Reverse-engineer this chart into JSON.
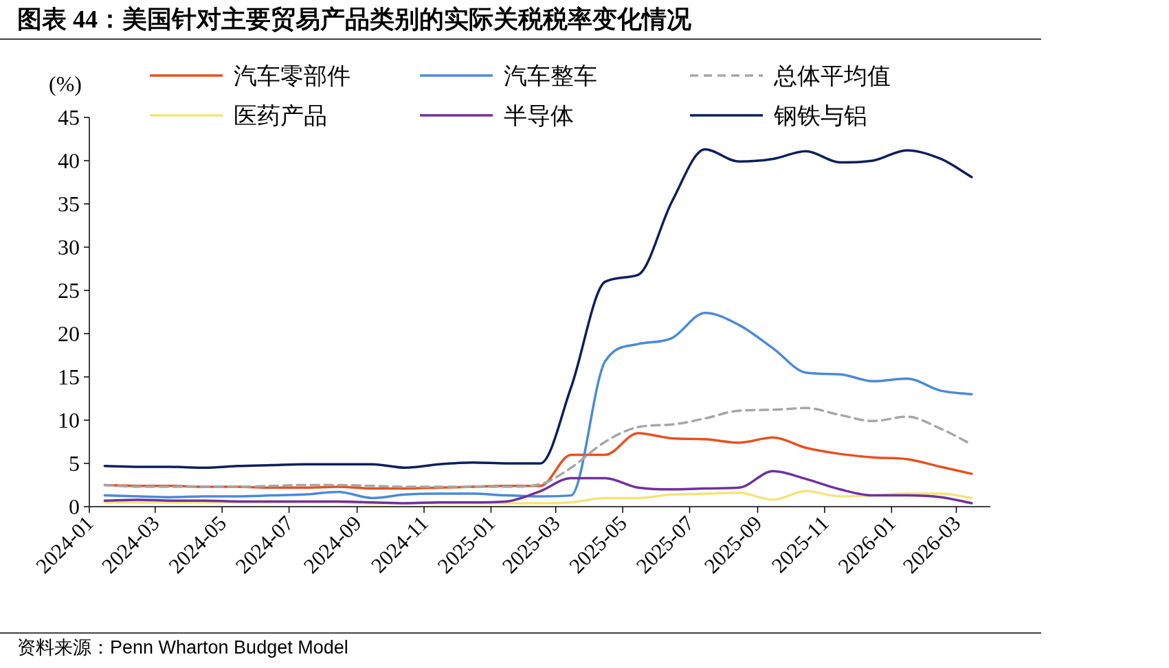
{
  "chart_data": {
    "type": "line",
    "title": "图表 44：美国针对主要贸易产品类别的实际关税税率变化情况",
    "ylabel": "(%)",
    "annotations": [
      "资料来源：Penn Wharton Budget Model"
    ],
    "legend": "top",
    "x": [
      "2024-01-15",
      "2024-02-15",
      "2024-03-15",
      "2024-04-15",
      "2024-05-15",
      "2024-06-15",
      "2024-07-15",
      "2024-08-15",
      "2024-09-15",
      "2024-10-15",
      "2024-11-15",
      "2024-12-15",
      "2025-01-15",
      "2025-02-15",
      "2025-03-15",
      "2025-04-15",
      "2025-05-15",
      "2025-06-15",
      "2025-07-15",
      "2025-08-15",
      "2025-09-15",
      "2025-10-15",
      "2025-11-15",
      "2025-12-15",
      "2026-01-15",
      "2026-02-15",
      "2026-03-15"
    ],
    "xlim": [
      "2024-01",
      "2026-04"
    ],
    "xticks": [
      "2024-01",
      "2024-03",
      "2024-05",
      "2024-07",
      "2024-09",
      "2024-11",
      "2025-01",
      "2025-03",
      "2025-05",
      "2025-07",
      "2025-09",
      "2025-11",
      "2026-01",
      "2026-03"
    ],
    "ylim": [
      0,
      45
    ],
    "yticks": [
      0,
      5,
      10,
      15,
      20,
      25,
      30,
      35,
      40,
      45
    ],
    "series": [
      {
        "name": "汽车零部件",
        "color": "#e8501e",
        "values": [
          2.5,
          2.4,
          2.4,
          2.3,
          2.3,
          2.2,
          2.2,
          2.3,
          2.1,
          2.1,
          2.2,
          2.3,
          2.4,
          2.4,
          6.0,
          6.0,
          8.5,
          7.9,
          7.8,
          7.4,
          8.0,
          6.8,
          6.1,
          5.7,
          5.5,
          4.6,
          3.8
        ]
      },
      {
        "name": "汽车整车",
        "color": "#4a8ad8",
        "values": [
          1.3,
          1.2,
          1.1,
          1.2,
          1.2,
          1.3,
          1.4,
          1.7,
          1.0,
          1.4,
          1.5,
          1.5,
          1.3,
          1.2,
          1.3,
          16.8,
          18.8,
          19.5,
          22.4,
          21.0,
          18.3,
          15.5,
          15.3,
          14.5,
          14.8,
          13.4,
          13.0
        ]
      },
      {
        "name": "总体平均值",
        "color": "#a6a6a6",
        "line_style": "dashed",
        "values": [
          2.5,
          2.3,
          2.3,
          2.3,
          2.3,
          2.4,
          2.5,
          2.5,
          2.4,
          2.3,
          2.3,
          2.3,
          2.3,
          2.6,
          4.5,
          7.5,
          9.2,
          9.5,
          10.2,
          11.1,
          11.2,
          11.4,
          10.6,
          9.9,
          10.4,
          9.0,
          7.2
        ]
      },
      {
        "name": "医药产品",
        "color": "#f5e37a",
        "values": [
          0.5,
          0.5,
          0.5,
          0.5,
          0.5,
          0.5,
          0.5,
          0.5,
          0.4,
          0.4,
          0.4,
          0.4,
          0.4,
          0.4,
          0.5,
          1.0,
          1.0,
          1.4,
          1.5,
          1.6,
          0.8,
          1.8,
          1.2,
          1.3,
          1.5,
          1.5,
          1.0
        ]
      },
      {
        "name": "半导体",
        "color": "#7030a0",
        "values": [
          0.7,
          0.8,
          0.7,
          0.7,
          0.6,
          0.6,
          0.6,
          0.6,
          0.5,
          0.4,
          0.5,
          0.5,
          0.6,
          1.8,
          3.3,
          3.3,
          2.2,
          2.0,
          2.1,
          2.2,
          4.1,
          3.2,
          2.0,
          1.3,
          1.3,
          1.1,
          0.4
        ]
      },
      {
        "name": "钢铁与铝",
        "color": "#0c1f5c",
        "values": [
          4.7,
          4.6,
          4.6,
          4.5,
          4.7,
          4.8,
          4.9,
          4.9,
          4.9,
          4.5,
          4.9,
          5.1,
          5.0,
          5.0,
          13.8,
          26.0,
          26.8,
          35.3,
          41.3,
          39.9,
          40.2,
          41.1,
          39.8,
          40.0,
          41.2,
          40.2,
          38.1
        ]
      }
    ]
  }
}
